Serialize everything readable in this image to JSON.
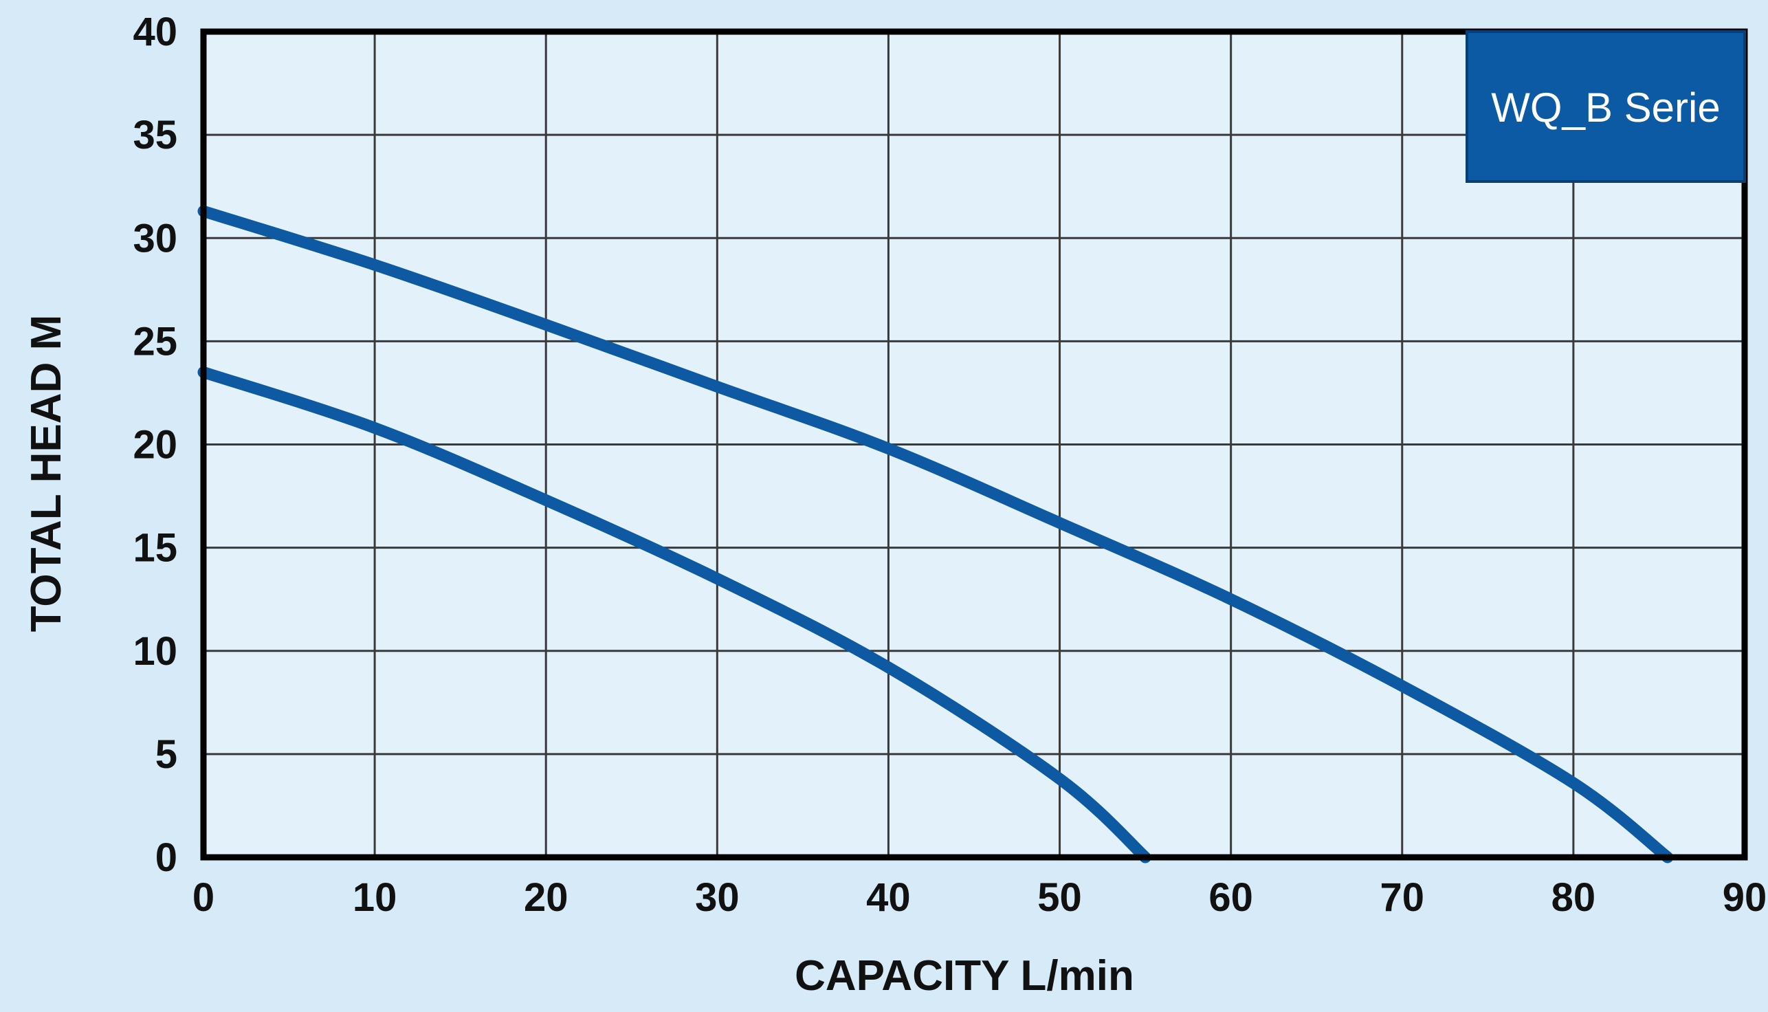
{
  "chart_data": {
    "type": "line",
    "xlabel": "CAPACITY  L/min",
    "ylabel": "TOTAL HEAD M",
    "xlim": [
      0,
      90
    ],
    "ylim": [
      0,
      40
    ],
    "x_ticks": [
      0,
      10,
      20,
      30,
      40,
      50,
      60,
      70,
      80,
      90
    ],
    "y_ticks": [
      0,
      5,
      10,
      15,
      20,
      25,
      30,
      35,
      40
    ],
    "grid": true,
    "legend": {
      "label": "WQ_B Serie",
      "placement": "top-right"
    },
    "series": [
      {
        "x": [
          0,
          10,
          20,
          30,
          40,
          50,
          55
        ],
        "y": [
          23.5,
          20.8,
          17.3,
          13.5,
          9.2,
          3.8,
          0
        ]
      },
      {
        "x": [
          0,
          10,
          20,
          30,
          40,
          50,
          60,
          70,
          80,
          85.5
        ],
        "y": [
          31.3,
          28.7,
          25.8,
          22.8,
          19.8,
          16.2,
          12.5,
          8.3,
          3.6,
          0
        ]
      }
    ],
    "colors": {
      "background": "#d7eaf7",
      "plot_background": "#e3f1fa",
      "line": "#0d5aa3",
      "legend_box": "#0b5aa3",
      "axis": "#000000",
      "grid": "#3a3a3a"
    }
  }
}
